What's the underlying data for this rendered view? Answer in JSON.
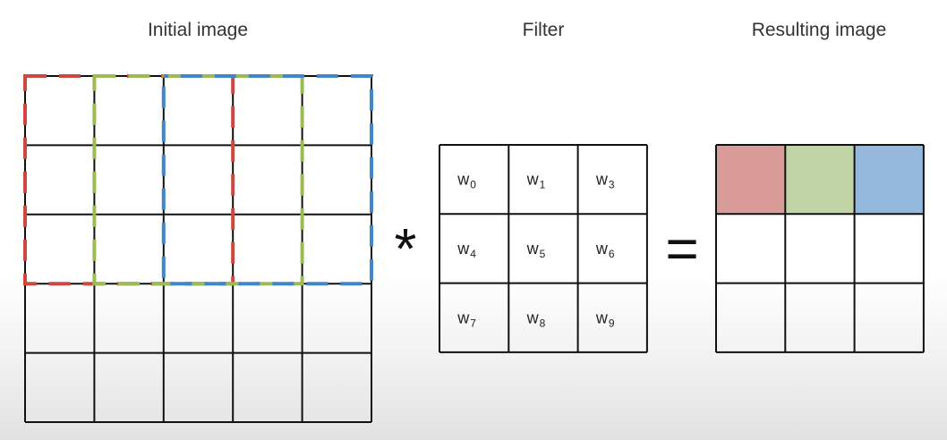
{
  "titles": {
    "initial": "Initial image",
    "filter": "Filter",
    "result": "Resulting image"
  },
  "operators": {
    "convolve": "*",
    "equals": "="
  },
  "filter_weights": [
    {
      "base": "w",
      "sub": "0"
    },
    {
      "base": "w",
      "sub": "1"
    },
    {
      "base": "w",
      "sub": "3"
    },
    {
      "base": "w",
      "sub": "4"
    },
    {
      "base": "w",
      "sub": "5"
    },
    {
      "base": "w",
      "sub": "6"
    },
    {
      "base": "w",
      "sub": "7"
    },
    {
      "base": "w",
      "sub": "8"
    },
    {
      "base": "w",
      "sub": "9"
    }
  ],
  "colors": {
    "red": "#d0473f",
    "green": "#9cbb55",
    "blue": "#3f86cc",
    "result_red": "#d99b98",
    "result_green": "#c1d4a6",
    "result_blue": "#93b8dc"
  }
}
